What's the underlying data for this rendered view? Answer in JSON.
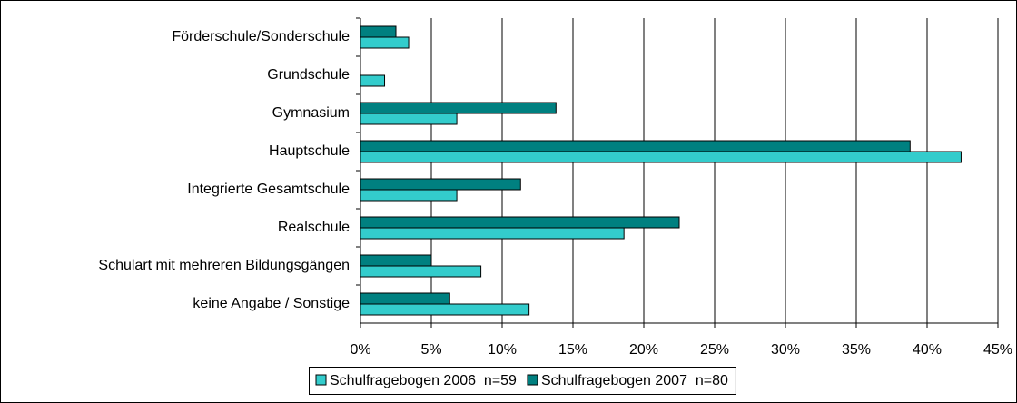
{
  "chart_data": {
    "type": "hbar",
    "categories": [
      "Förderschule/Sonderschule",
      "Grundschule",
      "Gymnasium",
      "Hauptschule",
      "Integrierte Gesamtschule",
      "Realschule",
      "Schulart mit mehreren Bildungsgängen",
      "keine Angabe / Sonstige"
    ],
    "series": [
      {
        "name": "Schulfragebogen 2006  n=59",
        "color": "#33cccc",
        "values": [
          3.4,
          1.7,
          6.8,
          42.4,
          6.8,
          18.6,
          8.5,
          11.9
        ]
      },
      {
        "name": "Schulfragebogen 2007  n=80",
        "color": "#008080",
        "values": [
          2.5,
          0,
          13.8,
          38.8,
          11.3,
          22.5,
          5.0,
          6.3
        ]
      }
    ],
    "xlim": [
      0,
      45
    ],
    "xticks": [
      {
        "value": 0,
        "label": "0%"
      },
      {
        "value": 5,
        "label": "5%"
      },
      {
        "value": 10,
        "label": "10%"
      },
      {
        "value": 15,
        "label": "15%"
      },
      {
        "value": 20,
        "label": "20%"
      },
      {
        "value": 25,
        "label": "25%"
      },
      {
        "value": 30,
        "label": "30%"
      },
      {
        "value": 35,
        "label": "35%"
      },
      {
        "value": 40,
        "label": "40%"
      },
      {
        "value": 45,
        "label": "45%"
      }
    ],
    "grid": true,
    "legend": "bottom"
  }
}
